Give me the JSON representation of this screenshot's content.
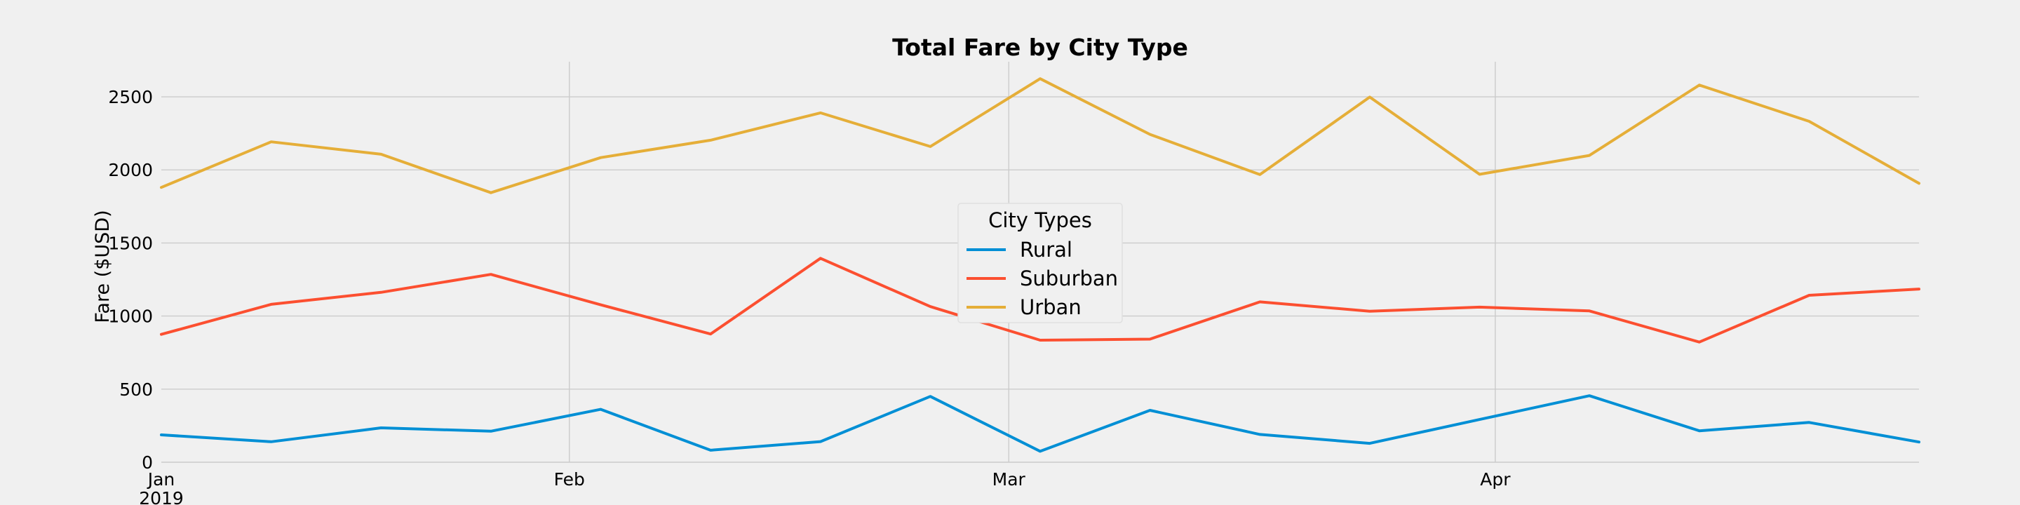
{
  "chart_data": {
    "type": "line",
    "title": "Total Fare by City Type",
    "xlabel": "",
    "ylabel": "Fare ($USD)",
    "x": [
      "2019-01-06",
      "2019-01-13",
      "2019-01-20",
      "2019-01-27",
      "2019-02-03",
      "2019-02-10",
      "2019-02-17",
      "2019-02-24",
      "2019-03-03",
      "2019-03-10",
      "2019-03-17",
      "2019-03-24",
      "2019-03-31",
      "2019-04-07",
      "2019-04-14",
      "2019-04-21",
      "2019-04-28"
    ],
    "xlim": [
      "2019-01-06",
      "2019-04-28"
    ],
    "ylim": [
      0,
      2740
    ],
    "y_ticks": [
      0,
      500,
      1000,
      1500,
      2000,
      2500
    ],
    "y_tick_labels": [
      "0",
      "500",
      "1000",
      "1500",
      "2000",
      "2500"
    ],
    "x_ticks": [
      {
        "date": "2019-01-06",
        "label": "Jan",
        "sublabel": "2019"
      },
      {
        "date": "2019-02-01",
        "label": "Feb",
        "sublabel": ""
      },
      {
        "date": "2019-03-01",
        "label": "Mar",
        "sublabel": ""
      },
      {
        "date": "2019-04-01",
        "label": "Apr",
        "sublabel": ""
      }
    ],
    "grid": true,
    "legend": {
      "title": "City Types",
      "placement": "center"
    },
    "series": [
      {
        "name": "Rural",
        "color": "#008fd5",
        "values": [
          187,
          140,
          235,
          212,
          362,
          82,
          141,
          450,
          75,
          355,
          190,
          129,
          292,
          455,
          215,
          272,
          138
        ]
      },
      {
        "name": "Suburban",
        "color": "#fc4f30",
        "values": [
          875,
          1080,
          1162,
          1285,
          1077,
          877,
          1395,
          1065,
          835,
          842,
          1097,
          1033,
          1061,
          1035,
          822,
          1142,
          1185
        ]
      },
      {
        "name": "Urban",
        "color": "#e5ae38",
        "values": [
          1880,
          2192,
          2107,
          1844,
          2084,
          2203,
          2390,
          2160,
          2624,
          2243,
          1968,
          2498,
          1970,
          2099,
          2580,
          2332,
          1908
        ]
      }
    ]
  }
}
